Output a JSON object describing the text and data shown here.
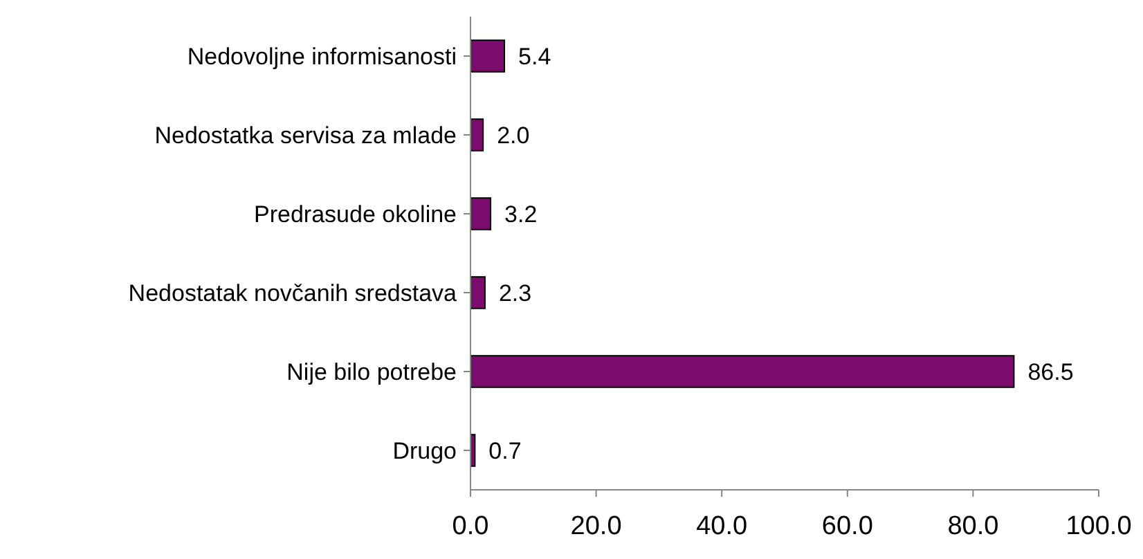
{
  "chart_data": {
    "type": "bar",
    "orientation": "horizontal",
    "categories": [
      "Nedovoljne informisanosti",
      "Nedostatka servisa za mlade",
      "Predrasude okoline",
      "Nedostatak novčanih sredstava",
      "Nije bilo potrebe",
      "Drugo"
    ],
    "values": [
      5.4,
      2.0,
      3.2,
      2.3,
      86.5,
      0.7
    ],
    "value_labels": [
      "5.4",
      "2.0",
      "3.2",
      "2.3",
      "86.5",
      "0.7"
    ],
    "color": "#7b0c6e",
    "xlim": [
      0,
      100
    ],
    "xticks": [
      {
        "value": 0,
        "label": "0.0"
      },
      {
        "value": 20,
        "label": "20.0"
      },
      {
        "value": 40,
        "label": "40.0"
      },
      {
        "value": 60,
        "label": "60.0"
      },
      {
        "value": 80,
        "label": "80.0"
      },
      {
        "value": 100,
        "label": "100.0"
      }
    ],
    "grid": false
  }
}
